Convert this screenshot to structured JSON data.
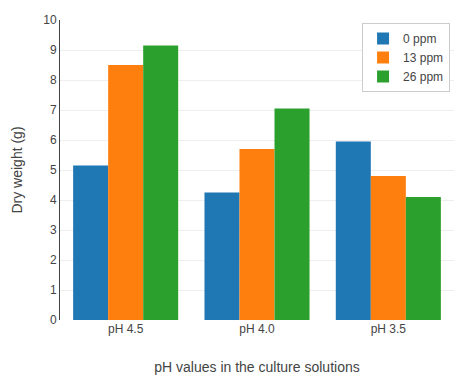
{
  "chart_data": {
    "type": "bar",
    "categories": [
      "pH 4.5",
      "pH 4.0",
      "pH 3.5"
    ],
    "series": [
      {
        "name": "0 ppm",
        "values": [
          5.15,
          4.25,
          5.95
        ]
      },
      {
        "name": "13 ppm",
        "values": [
          8.5,
          5.7,
          4.8
        ]
      },
      {
        "name": "26 ppm",
        "values": [
          9.15,
          7.05,
          4.1
        ]
      }
    ],
    "xlabel": "pH values in the culture solutions",
    "ylabel": "Dry weight (g)",
    "ylim": [
      0,
      10
    ],
    "yticks": [
      0,
      1,
      2,
      3,
      4,
      5,
      6,
      7,
      8,
      9,
      10
    ],
    "grid": true,
    "legend": "upper right"
  }
}
